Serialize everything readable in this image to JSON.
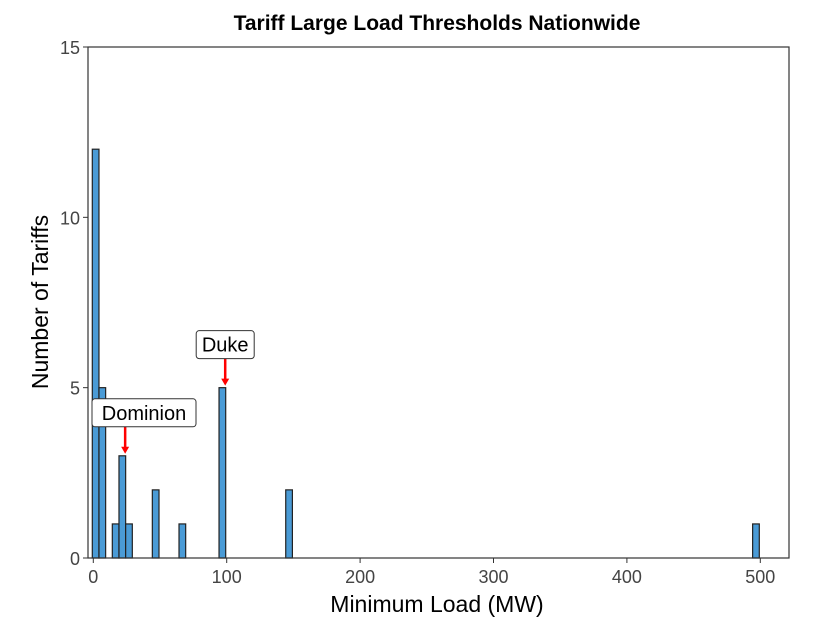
{
  "chart_data": {
    "type": "bar",
    "title": "Tariff Large Load Thresholds Nationwide",
    "xlabel": "Minimum Load (MW)",
    "ylabel": "Number of Tariffs",
    "xlim": [
      0,
      500
    ],
    "ylim": [
      0,
      15
    ],
    "xticks": [
      0,
      100,
      200,
      300,
      400,
      500
    ],
    "yticks": [
      0,
      5,
      10,
      15
    ],
    "grid": false,
    "bin_width": 5,
    "bins": [
      {
        "start": 0,
        "end": 5,
        "count": 12
      },
      {
        "start": 5,
        "end": 10,
        "count": 5
      },
      {
        "start": 15,
        "end": 20,
        "count": 1
      },
      {
        "start": 20,
        "end": 25,
        "count": 3
      },
      {
        "start": 25,
        "end": 30,
        "count": 1
      },
      {
        "start": 45,
        "end": 50,
        "count": 2
      },
      {
        "start": 65,
        "end": 70,
        "count": 1
      },
      {
        "start": 95,
        "end": 100,
        "count": 5
      },
      {
        "start": 145,
        "end": 150,
        "count": 2
      },
      {
        "start": 495,
        "end": 500,
        "count": 1
      }
    ],
    "annotations": [
      {
        "label": "Duke",
        "x": 100,
        "y": 5
      },
      {
        "label": "Dominion",
        "x": 25,
        "y": 3
      }
    ],
    "colors": {
      "bar": "#4a9bd6",
      "bar_edge": "#222222",
      "arrow": "#ff0000"
    }
  }
}
